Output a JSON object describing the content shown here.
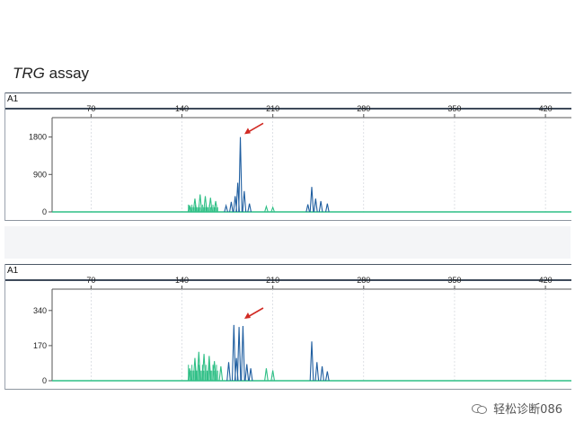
{
  "title": {
    "italic": "TRG",
    "rest": " assay"
  },
  "panels": [
    {
      "label": "A1",
      "x_ticks": [
        70,
        140,
        210,
        280,
        350,
        420
      ],
      "y_ticks": [
        0,
        900,
        1800
      ],
      "y_max": 2050,
      "peaks": [
        {
          "x": 185,
          "y": 1800,
          "color": "#1f5ea0"
        },
        {
          "x": 183,
          "y": 700,
          "color": "#1f5ea0"
        },
        {
          "x": 181,
          "y": 380,
          "color": "#1f5ea0"
        },
        {
          "x": 188,
          "y": 500,
          "color": "#1f5ea0"
        },
        {
          "x": 178,
          "y": 240,
          "color": "#1f5ea0"
        },
        {
          "x": 192,
          "y": 200,
          "color": "#1f5ea0"
        },
        {
          "x": 174,
          "y": 150,
          "color": "#1f5ea0"
        },
        {
          "x": 240,
          "y": 600,
          "color": "#1f5ea0"
        },
        {
          "x": 243,
          "y": 320,
          "color": "#1f5ea0"
        },
        {
          "x": 247,
          "y": 260,
          "color": "#1f5ea0"
        },
        {
          "x": 252,
          "y": 200,
          "color": "#1f5ea0"
        },
        {
          "x": 237,
          "y": 180,
          "color": "#1f5ea0"
        },
        {
          "x": 150,
          "y": 320,
          "color": "#2fbf86"
        },
        {
          "x": 154,
          "y": 420,
          "color": "#2fbf86"
        },
        {
          "x": 158,
          "y": 380,
          "color": "#2fbf86"
        },
        {
          "x": 162,
          "y": 340,
          "color": "#2fbf86"
        },
        {
          "x": 166,
          "y": 260,
          "color": "#2fbf86"
        },
        {
          "x": 146,
          "y": 160,
          "color": "#2fbf86"
        },
        {
          "x": 205,
          "y": 130,
          "color": "#2fbf86"
        },
        {
          "x": 210,
          "y": 110,
          "color": "#2fbf86"
        }
      ],
      "arrow_target": {
        "x": 186,
        "y": 1870
      }
    },
    {
      "label": "A1",
      "x_ticks": [
        70,
        140,
        210,
        280,
        350,
        420
      ],
      "y_ticks": [
        0,
        170,
        340
      ],
      "y_max": 400,
      "peaks": [
        {
          "x": 180,
          "y": 270,
          "color": "#1f5ea0"
        },
        {
          "x": 184,
          "y": 260,
          "color": "#1f5ea0"
        },
        {
          "x": 187,
          "y": 265,
          "color": "#1f5ea0"
        },
        {
          "x": 182,
          "y": 110,
          "color": "#1f5ea0"
        },
        {
          "x": 190,
          "y": 80,
          "color": "#1f5ea0"
        },
        {
          "x": 176,
          "y": 90,
          "color": "#1f5ea0"
        },
        {
          "x": 193,
          "y": 60,
          "color": "#1f5ea0"
        },
        {
          "x": 240,
          "y": 190,
          "color": "#1f5ea0"
        },
        {
          "x": 244,
          "y": 90,
          "color": "#1f5ea0"
        },
        {
          "x": 248,
          "y": 70,
          "color": "#1f5ea0"
        },
        {
          "x": 252,
          "y": 45,
          "color": "#1f5ea0"
        },
        {
          "x": 150,
          "y": 110,
          "color": "#2fbf86"
        },
        {
          "x": 153,
          "y": 140,
          "color": "#2fbf86"
        },
        {
          "x": 157,
          "y": 130,
          "color": "#2fbf86"
        },
        {
          "x": 161,
          "y": 120,
          "color": "#2fbf86"
        },
        {
          "x": 165,
          "y": 95,
          "color": "#2fbf86"
        },
        {
          "x": 146,
          "y": 60,
          "color": "#2fbf86"
        },
        {
          "x": 170,
          "y": 70,
          "color": "#2fbf86"
        },
        {
          "x": 205,
          "y": 60,
          "color": "#2fbf86"
        },
        {
          "x": 210,
          "y": 50,
          "color": "#2fbf86"
        }
      ],
      "arrow_target": {
        "x": 186,
        "y": 300
      }
    }
  ],
  "colors": {
    "trace_blue": "#1f5ea0",
    "trace_green": "#2fbf86",
    "arrow": "#d12a23",
    "axis": "#555555"
  },
  "watermark": {
    "text": "轻松诊断086",
    "icon": "wechat-icon"
  },
  "chart_data": [
    {
      "type": "line",
      "title": "",
      "xlabel": "",
      "ylabel": "",
      "xlim": [
        40,
        440
      ],
      "ylim": [
        0,
        2050
      ],
      "x_ticks": [
        70,
        140,
        210,
        280,
        350,
        420
      ],
      "y_ticks": [
        0,
        900,
        1800
      ],
      "legend": "none",
      "series": [
        {
          "values": [
            [
              150,
              320
            ],
            [
              154,
              420
            ],
            [
              158,
              380
            ],
            [
              162,
              340
            ],
            [
              166,
              260
            ],
            [
              185,
              1800
            ],
            [
              183,
              700
            ],
            [
              188,
              500
            ],
            [
              205,
              130
            ],
            [
              240,
              600
            ],
            [
              243,
              320
            ],
            [
              247,
              260
            ],
            [
              252,
              200
            ]
          ]
        }
      ]
    },
    {
      "type": "line",
      "title": "",
      "xlabel": "",
      "ylabel": "",
      "xlim": [
        40,
        440
      ],
      "ylim": [
        0,
        400
      ],
      "x_ticks": [
        70,
        140,
        210,
        280,
        350,
        420
      ],
      "y_ticks": [
        0,
        170,
        340
      ],
      "legend": "none",
      "series": [
        {
          "values": [
            [
              150,
              110
            ],
            [
              153,
              140
            ],
            [
              157,
              130
            ],
            [
              161,
              120
            ],
            [
              180,
              270
            ],
            [
              184,
              260
            ],
            [
              187,
              265
            ],
            [
              205,
              60
            ],
            [
              240,
              190
            ],
            [
              244,
              90
            ],
            [
              248,
              70
            ],
            [
              252,
              45
            ]
          ]
        }
      ]
    }
  ]
}
